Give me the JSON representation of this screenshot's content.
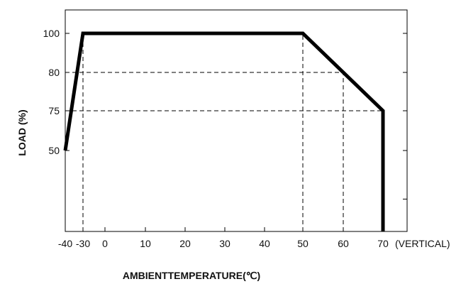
{
  "chart_data": {
    "type": "line",
    "xlabel": "AMBIENTTEMPERATURE(℃)",
    "ylabel": "LOAD (%)",
    "x_ticks": [
      "-40",
      "-30",
      "0",
      "10",
      "20",
      "30",
      "40",
      "50",
      "60",
      "70"
    ],
    "x_tick_suffix": "(VERTICAL)",
    "y_ticks": [
      "50",
      "75",
      "80",
      "100"
    ],
    "xlim": [
      -40,
      75
    ],
    "ylim": [
      25,
      112
    ],
    "grid": false,
    "series": [
      {
        "points": [
          {
            "x": -40,
            "y": 50
          },
          {
            "x": -30,
            "y": 100
          },
          {
            "x": 50,
            "y": 100
          },
          {
            "x": 70,
            "y": 75
          },
          {
            "x": 70,
            "y": 25
          }
        ]
      }
    ],
    "reference_lines": [
      {
        "from": {
          "x": -40,
          "y": 75
        },
        "to": {
          "x": 70,
          "y": 75
        }
      },
      {
        "from": {
          "x": -40,
          "y": 80
        },
        "to": {
          "x": 60,
          "y": 80
        }
      },
      {
        "from": {
          "x": -30,
          "y": 25
        },
        "to": {
          "x": -30,
          "y": 100
        }
      },
      {
        "from": {
          "x": 50,
          "y": 25
        },
        "to": {
          "x": 50,
          "y": 100
        }
      },
      {
        "from": {
          "x": 60,
          "y": 25
        },
        "to": {
          "x": 60,
          "y": 80
        }
      }
    ],
    "colors": {
      "line": "#000000",
      "dashed": "#000000",
      "frame": "#000000"
    }
  }
}
